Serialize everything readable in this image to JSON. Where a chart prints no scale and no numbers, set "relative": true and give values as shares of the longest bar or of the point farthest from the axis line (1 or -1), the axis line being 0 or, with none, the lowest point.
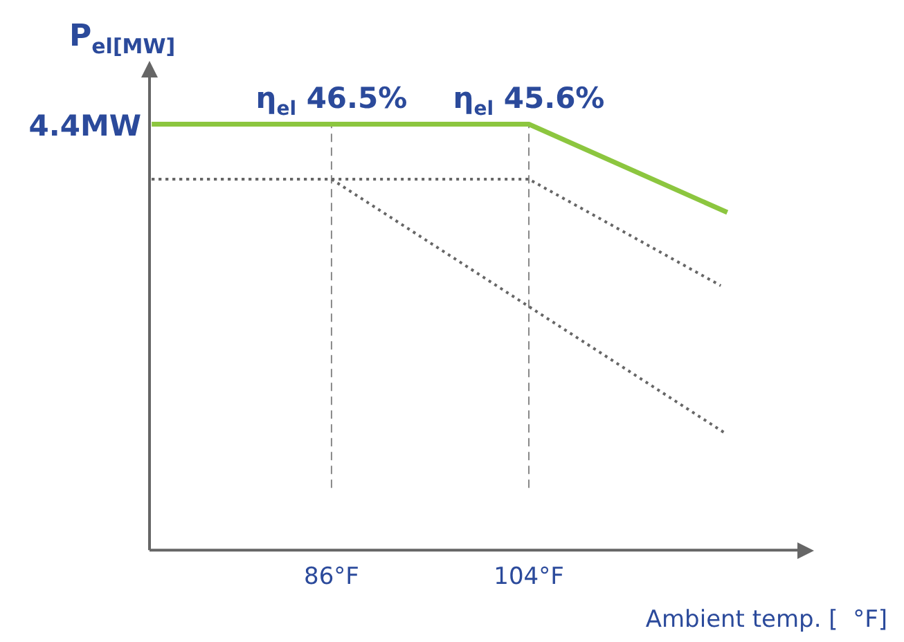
{
  "chart_data": {
    "type": "line",
    "relative": true,
    "ylabel": "P$_{el[MW]}$",
    "xlabel": "Ambient temp. [  °F]",
    "xlim": [
      69.4,
      129
    ],
    "xticks": [
      {
        "value": 86,
        "label": "86°F"
      },
      {
        "value": 104,
        "label": "104°F"
      }
    ],
    "grid": false,
    "legend": false,
    "marker": "none",
    "series": [
      {
        "color": "#8cc63f",
        "line_style": "solid",
        "x": [
          69.6,
          104,
          122.1
        ],
        "values": [
          1,
          1,
          0.793
        ]
      },
      {
        "color": "#666666",
        "line_style": "dotted",
        "x": [
          69.6,
          104,
          121.5
        ],
        "values": [
          0.871,
          0.871,
          0.621
        ]
      },
      {
        "color": "#666666",
        "line_style": "dotted",
        "x": [
          69.6,
          86,
          122
        ],
        "values": [
          0.871,
          0.871,
          0.273
        ]
      }
    ],
    "ref_lines": [
      {
        "axis": "x",
        "value": 86,
        "color": "#888888",
        "line_style": "dashed"
      },
      {
        "axis": "x",
        "value": 104,
        "color": "#888888",
        "line_style": "dashed"
      }
    ],
    "annotations": [
      {
        "text": "η$_{el}$ 46.5%",
        "x": 86,
        "y": 1
      },
      {
        "text": "η$_{el}$ 45.6%",
        "x": 104,
        "y": 1
      },
      {
        "text": "4.4MW",
        "x": 69.4,
        "y": 1
      }
    ]
  }
}
